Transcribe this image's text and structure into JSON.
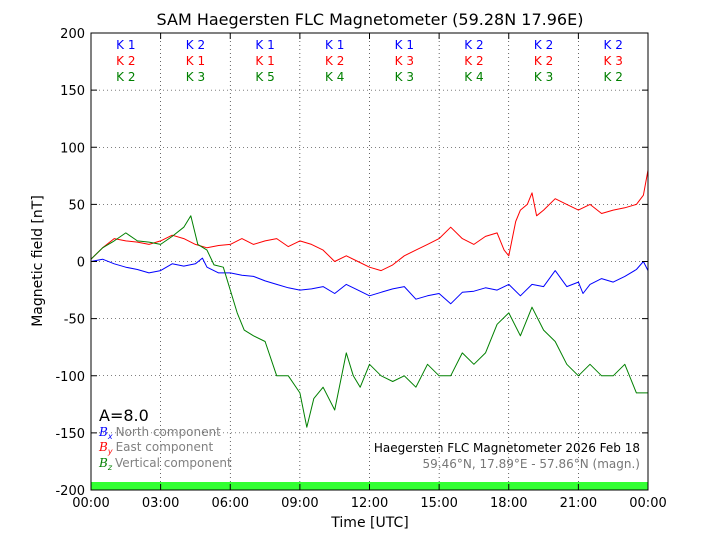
{
  "chart_data": {
    "type": "line",
    "title": "SAM Haegersten FLC Magnetometer (59.28N 17.96E)",
    "xlabel": "Time [UTC]",
    "ylabel": "Magnetic field [nT]",
    "xlim": [
      0,
      24
    ],
    "ylim": [
      -200,
      200
    ],
    "x_tick_values": [
      0,
      3,
      6,
      9,
      12,
      15,
      18,
      21,
      24
    ],
    "x_tick_labels": [
      "00:00",
      "03:00",
      "06:00",
      "09:00",
      "12:00",
      "15:00",
      "18:00",
      "21:00",
      "00:00"
    ],
    "y_ticks": [
      -200,
      -150,
      -100,
      -50,
      0,
      50,
      100,
      150,
      200
    ],
    "grid": true,
    "activity_index": "A=8.0",
    "caption_line1": "Haegersten FLC Magnetometer 2026 Feb 18",
    "caption_line2": "59.46°N, 17.89°E - 57.86°N (magn.)",
    "k_label": "K",
    "k_index": {
      "x_only": [
        1,
        2,
        1,
        1,
        1,
        2,
        2,
        2
      ],
      "y_only": [
        2,
        1,
        1,
        2,
        3,
        2,
        2,
        3
      ],
      "z_only": [
        2,
        3,
        5,
        4,
        3,
        4,
        3,
        2
      ]
    },
    "quiet_band": {
      "from": -200,
      "to": -193,
      "color": "#33ff33"
    },
    "series": [
      {
        "name": "North component",
        "symbol": "B",
        "subscript": "x",
        "color": "#0000ff",
        "x": [
          0,
          0.5,
          1,
          1.5,
          2,
          2.5,
          3,
          3.5,
          4,
          4.5,
          4.8,
          5,
          5.5,
          6,
          6.5,
          7,
          7.5,
          8,
          8.5,
          9,
          9.5,
          10,
          10.5,
          11,
          11.5,
          12,
          12.5,
          13,
          13.5,
          14,
          14.5,
          15,
          15.5,
          16,
          16.5,
          17,
          17.5,
          18,
          18.5,
          19,
          19.5,
          20,
          20.5,
          21,
          21.2,
          21.5,
          22,
          22.5,
          23,
          23.5,
          23.8,
          24
        ],
        "y": [
          0,
          2,
          -2,
          -5,
          -7,
          -10,
          -8,
          -2,
          -4,
          -2,
          3,
          -5,
          -10,
          -10,
          -12,
          -13,
          -17,
          -20,
          -23,
          -25,
          -24,
          -22,
          -28,
          -20,
          -25,
          -30,
          -27,
          -24,
          -22,
          -33,
          -30,
          -28,
          -37,
          -27,
          -26,
          -23,
          -25,
          -20,
          -30,
          -20,
          -22,
          -8,
          -22,
          -18,
          -28,
          -20,
          -15,
          -18,
          -13,
          -7,
          0,
          -8
        ]
      },
      {
        "name": "East component",
        "symbol": "B",
        "subscript": "y",
        "color": "#ff0000",
        "x": [
          0,
          0.5,
          1,
          1.5,
          2,
          2.5,
          3,
          3.5,
          4,
          4.5,
          5,
          5.5,
          6,
          6.5,
          7,
          7.5,
          8,
          8.5,
          9,
          9.5,
          10,
          10.5,
          11,
          11.5,
          12,
          12.5,
          13,
          13.5,
          14,
          14.5,
          15,
          15.5,
          16,
          16.5,
          17,
          17.5,
          17.8,
          18,
          18.3,
          18.5,
          18.8,
          19,
          19.2,
          19.5,
          20,
          20.5,
          21,
          21.5,
          22,
          22.5,
          23,
          23.5,
          23.8,
          24
        ],
        "y": [
          2,
          12,
          20,
          18,
          17,
          15,
          18,
          23,
          20,
          15,
          12,
          14,
          15,
          20,
          15,
          18,
          20,
          13,
          18,
          15,
          10,
          0,
          5,
          0,
          -5,
          -8,
          -3,
          5,
          10,
          15,
          20,
          30,
          20,
          15,
          22,
          25,
          10,
          5,
          35,
          45,
          50,
          60,
          40,
          45,
          55,
          50,
          45,
          50,
          42,
          45,
          47,
          50,
          58,
          80
        ]
      },
      {
        "name": "Vertical component",
        "symbol": "B",
        "subscript": "z",
        "color": "#008000",
        "x": [
          0,
          0.5,
          1,
          1.5,
          2,
          2.5,
          3,
          3.5,
          4,
          4.3,
          4.6,
          5,
          5.3,
          5.7,
          6,
          6.3,
          6.6,
          7,
          7.5,
          8,
          8.5,
          9,
          9.3,
          9.6,
          10,
          10.5,
          11,
          11.3,
          11.6,
          12,
          12.5,
          13,
          13.5,
          14,
          14.5,
          15,
          15.5,
          16,
          16.5,
          17,
          17.5,
          18,
          18.5,
          19,
          19.5,
          20,
          20.5,
          21,
          21.5,
          22,
          22.5,
          23,
          23.5,
          24
        ],
        "y": [
          2,
          12,
          18,
          25,
          18,
          17,
          15,
          22,
          30,
          40,
          15,
          10,
          -3,
          -5,
          -25,
          -45,
          -60,
          -65,
          -70,
          -100,
          -100,
          -115,
          -145,
          -120,
          -110,
          -130,
          -80,
          -100,
          -110,
          -90,
          -100,
          -105,
          -100,
          -110,
          -90,
          -100,
          -100,
          -80,
          -90,
          -80,
          -55,
          -45,
          -65,
          -40,
          -60,
          -70,
          -90,
          -100,
          -90,
          -100,
          -100,
          -90,
          -115,
          -115
        ]
      }
    ]
  }
}
